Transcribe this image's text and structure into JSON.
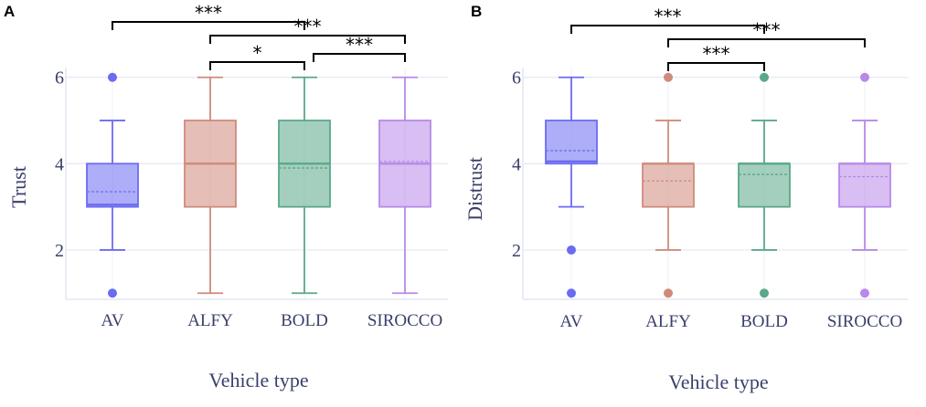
{
  "chart_data": [
    {
      "panel": "A",
      "type": "box",
      "xlabel": "Vehicle type",
      "ylabel": "Trust",
      "ylim": [
        0.9,
        6.1
      ],
      "yticks": [
        "2",
        "4",
        "6"
      ],
      "categories": [
        "AV",
        "ALFY",
        "BOLD",
        "SIROCCO"
      ],
      "colors": [
        "#6b6bf2",
        "#d08a7c",
        "#5aa889",
        "#b889e8"
      ],
      "boxes": [
        {
          "name": "AV",
          "low": 2,
          "q1": 3,
          "median": 3.05,
          "q3": 4,
          "high": 5,
          "mean": 3.35,
          "outliers": [
            1,
            6
          ]
        },
        {
          "name": "ALFY",
          "low": 1,
          "q1": 3,
          "median": 4,
          "q3": 5,
          "high": 6,
          "mean": 4.0,
          "outliers": []
        },
        {
          "name": "BOLD",
          "low": 1,
          "q1": 3,
          "median": 4,
          "q3": 5,
          "high": 6,
          "mean": 3.9,
          "outliers": []
        },
        {
          "name": "SIROCCO",
          "low": 1,
          "q1": 3,
          "median": 4,
          "q3": 5,
          "high": 6,
          "mean": 4.05,
          "outliers": []
        }
      ],
      "significance": [
        {
          "from": 0,
          "to": 2,
          "label": "***"
        },
        {
          "from": 1,
          "to": 3,
          "label": "***"
        },
        {
          "from": 1,
          "to": 2,
          "label": "*"
        },
        {
          "from": 2,
          "to": 3,
          "label": "***"
        }
      ]
    },
    {
      "panel": "B",
      "type": "box",
      "xlabel": "Vehicle type",
      "ylabel": "Distrust",
      "ylim": [
        0.9,
        6.1
      ],
      "yticks": [
        "2",
        "4",
        "6"
      ],
      "categories": [
        "AV",
        "ALFY",
        "BOLD",
        "SIROCCO"
      ],
      "colors": [
        "#6b6bf2",
        "#d08a7c",
        "#5aa889",
        "#b889e8"
      ],
      "boxes": [
        {
          "name": "AV",
          "low": 3,
          "q1": 4,
          "median": 4.05,
          "q3": 5,
          "high": 6,
          "mean": 4.3,
          "outliers": [
            1,
            2
          ]
        },
        {
          "name": "ALFY",
          "low": 2,
          "q1": 3,
          "median": 4,
          "q3": 4,
          "high": 5,
          "mean": 3.6,
          "outliers": [
            1,
            6
          ]
        },
        {
          "name": "BOLD",
          "low": 2,
          "q1": 3,
          "median": 4,
          "q3": 4,
          "high": 5,
          "mean": 3.75,
          "outliers": [
            1,
            6
          ]
        },
        {
          "name": "SIROCCO",
          "low": 2,
          "q1": 3,
          "median": 4,
          "q3": 4,
          "high": 5,
          "mean": 3.7,
          "outliers": [
            1,
            6
          ]
        }
      ],
      "significance": [
        {
          "from": 0,
          "to": 2,
          "label": "***"
        },
        {
          "from": 1,
          "to": 3,
          "label": "***"
        },
        {
          "from": 1,
          "to": 2,
          "label": "***"
        }
      ]
    }
  ]
}
